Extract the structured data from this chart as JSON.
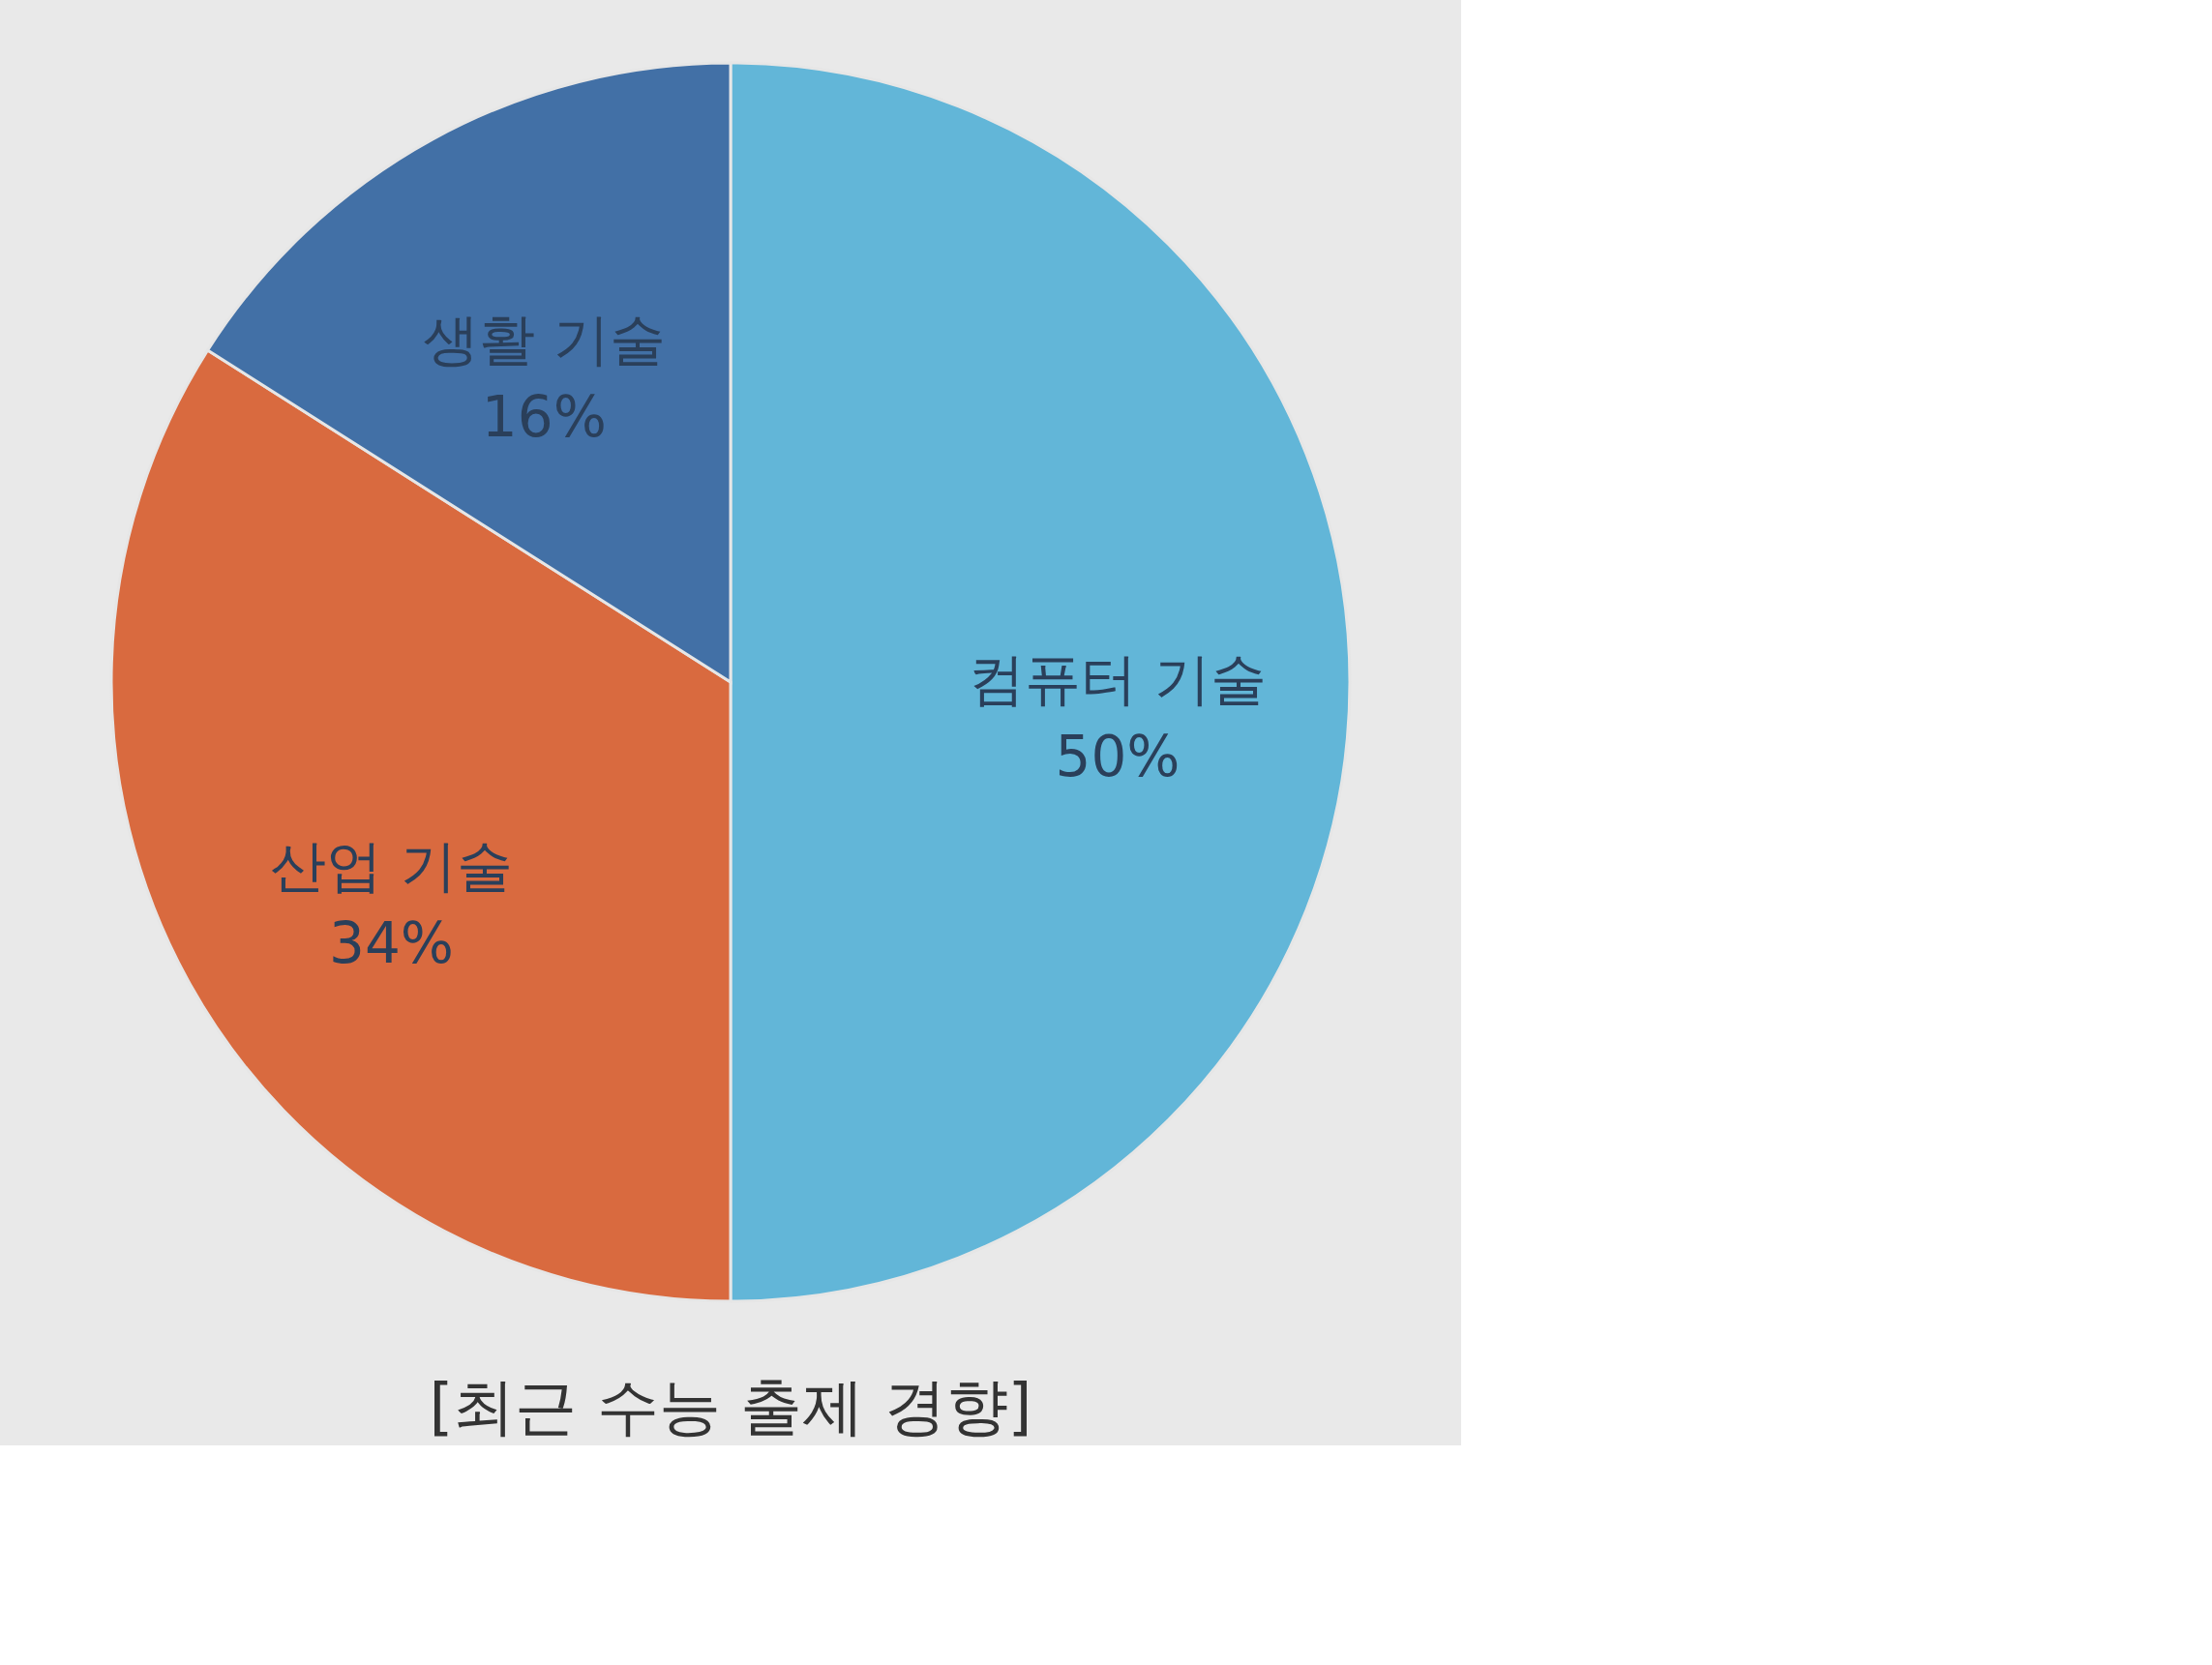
{
  "chart_data": {
    "type": "pie",
    "title": "[최근 수능 출제 경향]",
    "categories": [
      "컴퓨터 기술",
      "산업 기술",
      "생활 기술"
    ],
    "values": [
      50,
      34,
      16
    ],
    "value_labels": [
      "50%",
      "34%",
      "16%"
    ],
    "colors": [
      "#62b6d8",
      "#d96a3f",
      "#4270a6"
    ],
    "legend": false
  }
}
